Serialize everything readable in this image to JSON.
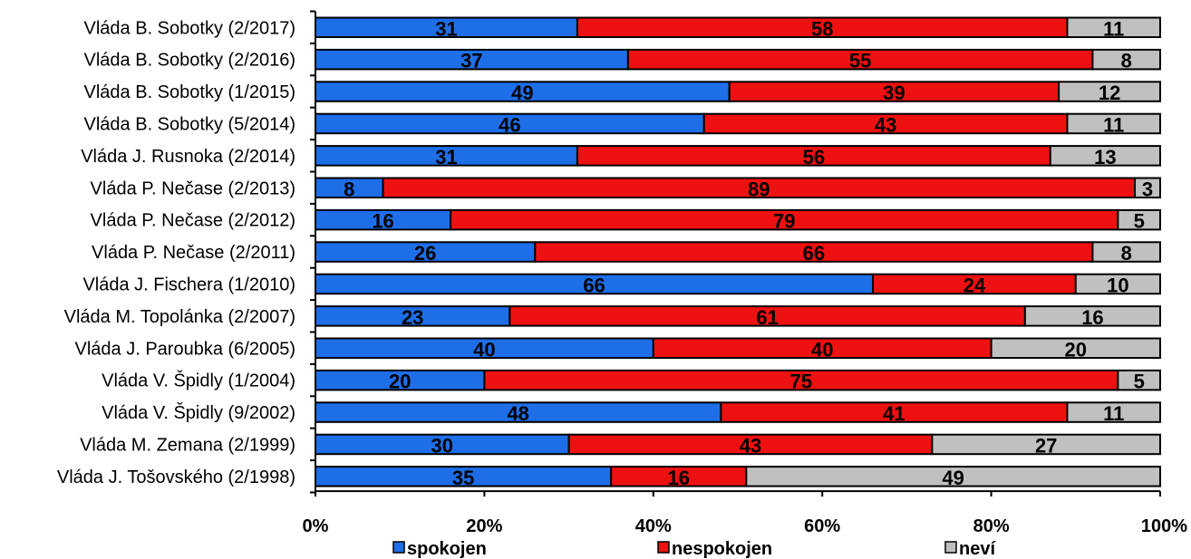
{
  "chart_data": {
    "type": "bar",
    "orientation": "horizontal",
    "stacked": "percent",
    "categories": [
      "Vláda B. Sobotky (2/2017)",
      "Vláda B. Sobotky (2/2016)",
      "Vláda B. Sobotky (1/2015)",
      "Vláda B. Sobotky (5/2014)",
      "Vláda J. Rusnoka (2/2014)",
      "Vláda P. Nečase (2/2013)",
      "Vláda P. Nečase (2/2012)",
      "Vláda P. Nečase (2/2011)",
      "Vláda J. Fischera (1/2010)",
      "Vláda M. Topolánka (2/2007)",
      "Vláda J. Paroubka (6/2005)",
      "Vláda V. Špidly (1/2004)",
      "Vláda V. Špidly (9/2002)",
      "Vláda M. Zemana (2/1999)",
      "Vláda J. Tošovského (2/1998)"
    ],
    "series": [
      {
        "name": "spokojen",
        "color": "#1e6ee8",
        "values": [
          31,
          37,
          49,
          46,
          31,
          8,
          16,
          26,
          66,
          23,
          40,
          20,
          48,
          30,
          35
        ]
      },
      {
        "name": "nespokojen",
        "color": "#ee1111",
        "values": [
          58,
          55,
          39,
          43,
          56,
          89,
          79,
          66,
          24,
          61,
          40,
          75,
          41,
          43,
          16
        ]
      },
      {
        "name": "neví",
        "color": "#c0c0c0",
        "values": [
          11,
          8,
          12,
          11,
          13,
          3,
          5,
          8,
          10,
          16,
          20,
          5,
          11,
          27,
          49
        ]
      }
    ],
    "xticks": [
      "0%",
      "20%",
      "40%",
      "60%",
      "80%",
      "100%"
    ],
    "xlim": [
      0,
      100
    ],
    "grid": false,
    "legend": "bottom",
    "title": "",
    "xlabel": "",
    "ylabel": ""
  }
}
